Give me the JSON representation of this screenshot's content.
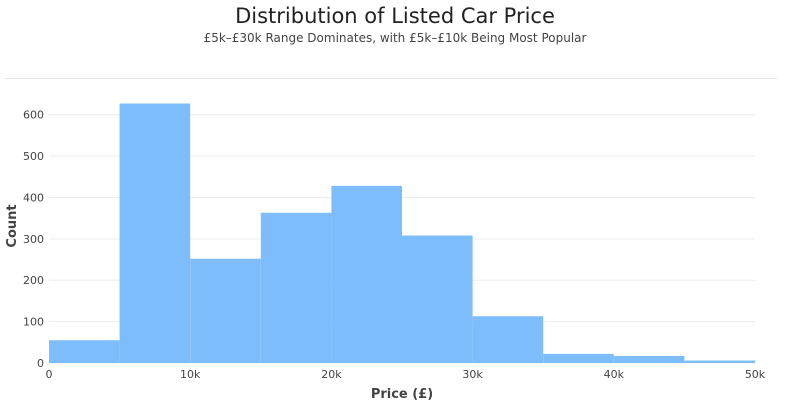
{
  "header": {
    "title": "Distribution of Listed Car Price",
    "subtitle": "£5k–£30k Range Dominates, with £5k–£10k Being Most Popular"
  },
  "chart_data": {
    "type": "bar",
    "title": "Distribution of Listed Car Price",
    "subtitle": "£5k–£30k Range Dominates, with £5k–£10k Being Most Popular",
    "xlabel": "Price (£)",
    "ylabel": "Count",
    "bins": [
      {
        "start": 0,
        "end": 5000,
        "count": 55
      },
      {
        "start": 5000,
        "end": 10000,
        "count": 627
      },
      {
        "start": 10000,
        "end": 15000,
        "count": 252
      },
      {
        "start": 15000,
        "end": 20000,
        "count": 363
      },
      {
        "start": 20000,
        "end": 25000,
        "count": 428
      },
      {
        "start": 25000,
        "end": 30000,
        "count": 308
      },
      {
        "start": 30000,
        "end": 35000,
        "count": 113
      },
      {
        "start": 35000,
        "end": 40000,
        "count": 22
      },
      {
        "start": 40000,
        "end": 45000,
        "count": 17
      },
      {
        "start": 45000,
        "end": 50000,
        "count": 6
      }
    ],
    "xlim": [
      0,
      50000
    ],
    "ylim": [
      0,
      650
    ],
    "xticks": [
      {
        "value": 0,
        "label": "0"
      },
      {
        "value": 10000,
        "label": "10k"
      },
      {
        "value": 20000,
        "label": "20k"
      },
      {
        "value": 30000,
        "label": "30k"
      },
      {
        "value": 40000,
        "label": "40k"
      },
      {
        "value": 50000,
        "label": "50k"
      }
    ],
    "yticks": [
      {
        "value": 0,
        "label": "0"
      },
      {
        "value": 100,
        "label": "100"
      },
      {
        "value": 200,
        "label": "200"
      },
      {
        "value": 300,
        "label": "300"
      },
      {
        "value": 400,
        "label": "400"
      },
      {
        "value": 500,
        "label": "500"
      },
      {
        "value": 600,
        "label": "600"
      }
    ],
    "grid": true,
    "legend": "none",
    "bar_color": "#7ebdfc",
    "grid_color": "#ededed"
  }
}
